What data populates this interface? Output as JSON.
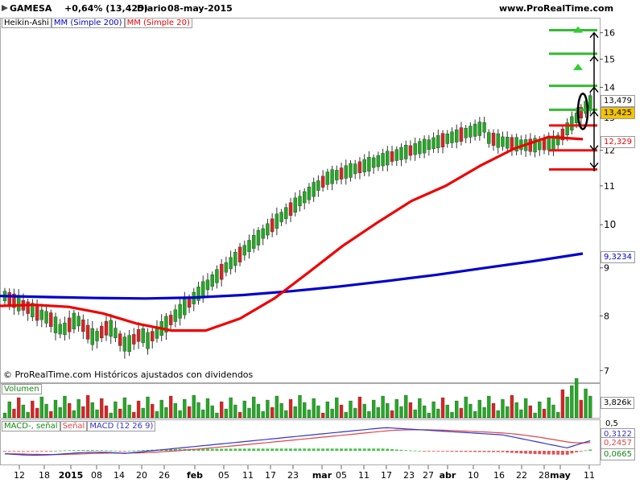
{
  "header": {
    "symbol": "GAMESA",
    "change": "+0,64% (13,425)",
    "period": "Diario",
    "date": "08-may-2015",
    "site": "www.ProRealTime.com"
  },
  "legend": {
    "chart_type": "Heikin-Ashi",
    "ma200": "MM (Simple 200)",
    "ma20": "MM (Simple 20)"
  },
  "watermark": "© ProRealTime.com  Históricos ajustados con dividendos",
  "volume_panel": {
    "label": "Volumen",
    "value_label": "3,826k"
  },
  "macd_panel": {
    "macd_minus_signal": "MACD-, señal",
    "signal": "Señal",
    "macd": "MACD (12 26 9)",
    "value_macd": "0,3122",
    "value_signal": "0,2457",
    "value_hist": "0,0665",
    "top_tick": "0,5"
  },
  "price_labels": {
    "high_level": "13,479",
    "last_price": "13,425",
    "ma20_value": "12,329",
    "ma200_value": "9,3234"
  },
  "colors": {
    "bull": "#22aa22",
    "bear": "#dd2222",
    "ma20": "#ee0000",
    "ma200": "#0000cc",
    "current_price_bg": "#f2c400",
    "macd_line": "#3333cc",
    "signal_line": "#dd4444"
  },
  "chart_data": {
    "type": "candlestick",
    "y_axis": {
      "scale": "log",
      "range": [
        6.8,
        16.6
      ],
      "ticks": [
        "7",
        "8",
        "9",
        "10",
        "11",
        "12",
        "13",
        "14",
        "15",
        "16"
      ]
    },
    "x_tick_labels": [
      "12",
      "18",
      "2015",
      "08",
      "14",
      "20",
      "26",
      "feb",
      "05",
      "11",
      "17",
      "23",
      "mar",
      "05",
      "11",
      "17",
      "23",
      "27",
      "abr",
      "10",
      "16",
      "22",
      "28",
      "may",
      "11"
    ],
    "series": [
      {
        "name": "MM (Simple 20)",
        "values": [
          8.2,
          8.22,
          8.18,
          8.05,
          7.85,
          7.72,
          7.72,
          7.95,
          8.35,
          8.9,
          9.5,
          10.05,
          10.6,
          11.0,
          11.55,
          12.05,
          12.4,
          12.33
        ]
      },
      {
        "name": "MM (Simple 200)",
        "values": [
          8.4,
          8.38,
          8.36,
          8.35,
          8.37,
          8.42,
          8.5,
          8.6,
          8.72,
          8.85,
          9.0,
          9.15,
          9.32
        ]
      }
    ],
    "levels_support_resistance": {
      "green": [
        16.1,
        15.2,
        14.05,
        13.25
      ],
      "red": [
        12.75,
        12.0,
        11.45
      ]
    },
    "last_close": 13.425,
    "volume_label": "3,826k",
    "macd": {
      "macd": 0.3122,
      "signal": 0.2457,
      "histogram": 0.0665
    }
  }
}
